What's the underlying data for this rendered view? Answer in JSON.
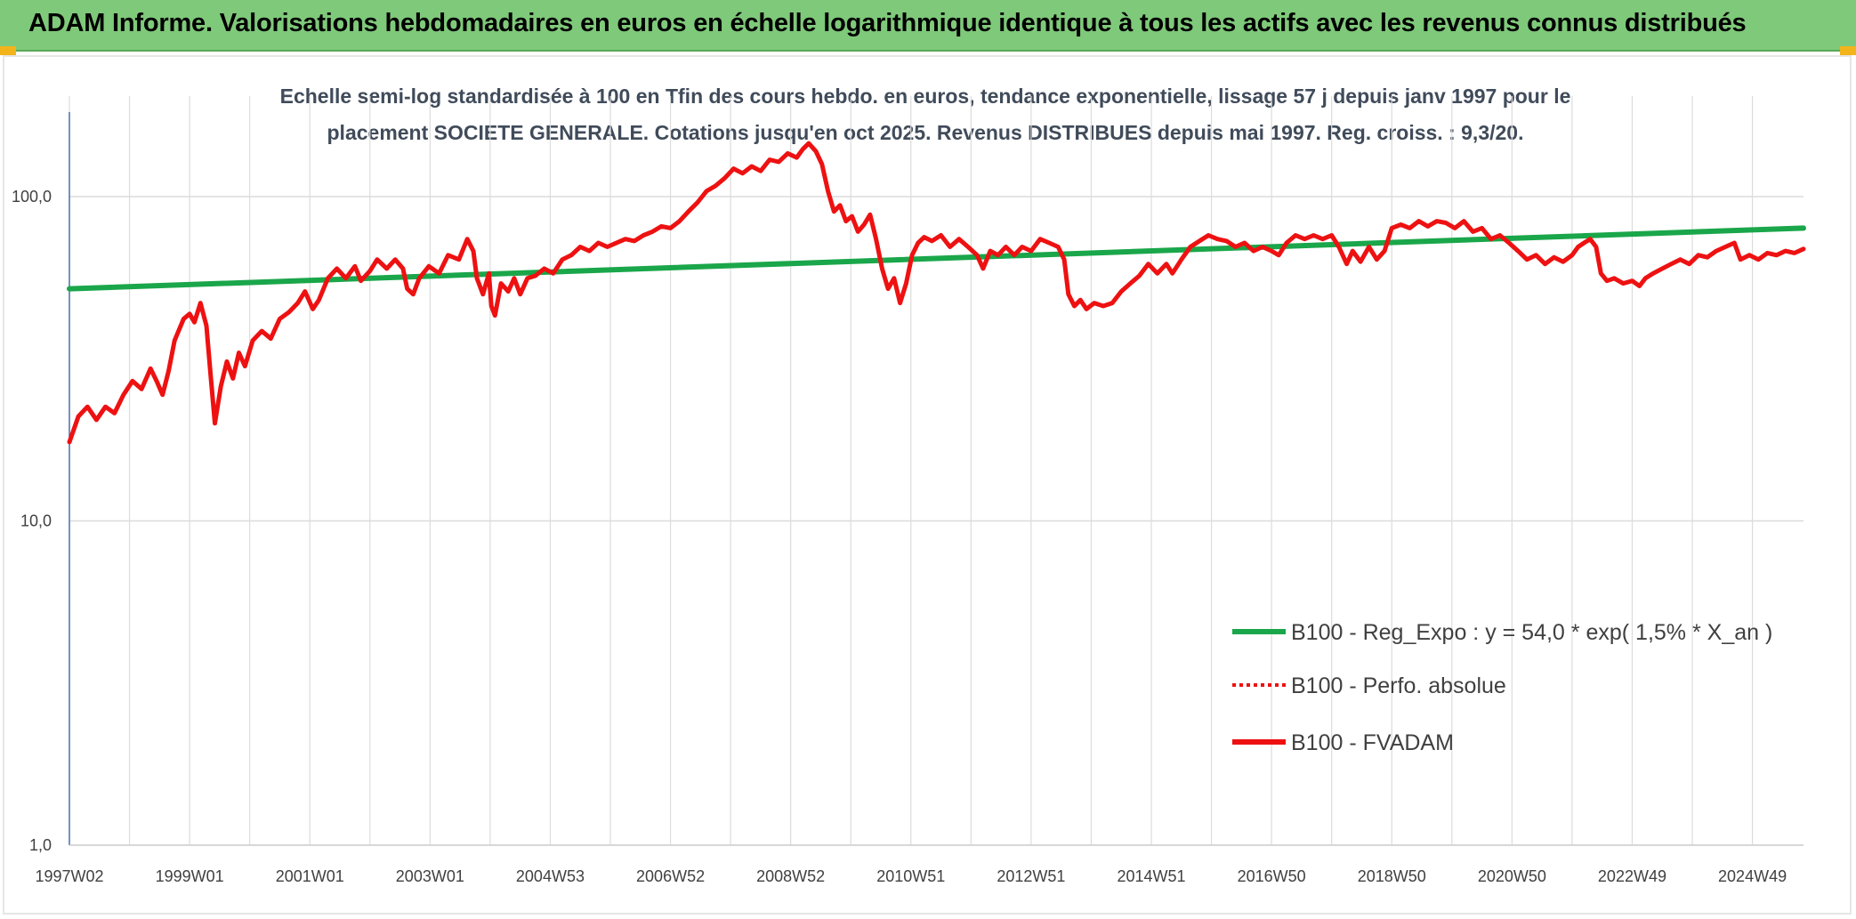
{
  "header": {
    "title": "ADAM Informe. Valorisations hebdomadaires en euros en échelle logarithmique identique à tous les actifs avec les revenus connus distribués"
  },
  "colors": {
    "banner": "#7fc97a",
    "corner": "#f3b41b",
    "trend": "#1aa64a",
    "series": "#ee1111",
    "grid": "#dcdcdc",
    "axis": "#4a6fb0"
  },
  "chart_data": {
    "type": "line",
    "title": "",
    "subtitle_lines": [
      "Echelle semi-log standardisée à 100 en Tfin des cours hebdo. en euros, tendance exponentielle, lissage 57 j depuis janv 1997 pour le",
      "placement SOCIETE GENERALE. Cotations jusqu'en oct 2025. Revenus DISTRIBUES depuis mai 1997. Reg. croiss. : 9,3/20."
    ],
    "y_scale": "log",
    "ylim": [
      1,
      180
    ],
    "y_ticks": [
      {
        "value": 1,
        "label": "1,0"
      },
      {
        "value": 10,
        "label": "10,0"
      },
      {
        "value": 100,
        "label": "100,0"
      }
    ],
    "xlim": [
      1997.0,
      2025.85
    ],
    "x_ticks": [
      {
        "x": 1997.0,
        "label": "1997W02"
      },
      {
        "x": 1999.0,
        "label": "1999W01"
      },
      {
        "x": 2001.0,
        "label": "2001W01"
      },
      {
        "x": 2003.0,
        "label": "2003W01"
      },
      {
        "x": 2005.0,
        "label": "2004W53"
      },
      {
        "x": 2007.0,
        "label": "2006W52"
      },
      {
        "x": 2009.0,
        "label": "2008W52"
      },
      {
        "x": 2011.0,
        "label": "2010W51"
      },
      {
        "x": 2013.0,
        "label": "2012W51"
      },
      {
        "x": 2015.0,
        "label": "2014W51"
      },
      {
        "x": 2017.0,
        "label": "2016W50"
      },
      {
        "x": 2019.0,
        "label": "2018W50"
      },
      {
        "x": 2021.0,
        "label": "2020W50"
      },
      {
        "x": 2023.0,
        "label": "2022W49"
      },
      {
        "x": 2025.0,
        "label": "2024W49"
      }
    ],
    "grid": true,
    "legend_position": "bottom-right",
    "series": [
      {
        "name": "B100 - Reg_Expo : y = 54,0 * exp( 1,5% *  X_an )",
        "style": "solid-green",
        "points": [
          [
            1997.0,
            52.0
          ],
          [
            2025.85,
            80.0
          ]
        ]
      },
      {
        "name": "B100 - Perfo. absolue",
        "style": "dotted-red",
        "points": []
      },
      {
        "name": "B100 - FVADAM",
        "style": "solid-red",
        "points": [
          [
            1997.0,
            17.5
          ],
          [
            1997.15,
            21.0
          ],
          [
            1997.3,
            22.5
          ],
          [
            1997.45,
            20.5
          ],
          [
            1997.6,
            22.5
          ],
          [
            1997.75,
            21.5
          ],
          [
            1997.9,
            24.5
          ],
          [
            1998.05,
            27.0
          ],
          [
            1998.2,
            25.5
          ],
          [
            1998.35,
            29.5
          ],
          [
            1998.45,
            27.0
          ],
          [
            1998.55,
            24.5
          ],
          [
            1998.65,
            29.0
          ],
          [
            1998.75,
            36.0
          ],
          [
            1998.9,
            42.0
          ],
          [
            1999.0,
            43.5
          ],
          [
            1999.08,
            41.0
          ],
          [
            1999.18,
            47.0
          ],
          [
            1999.28,
            40.0
          ],
          [
            1999.35,
            28.0
          ],
          [
            1999.42,
            20.0
          ],
          [
            1999.52,
            26.0
          ],
          [
            1999.62,
            31.0
          ],
          [
            1999.72,
            27.5
          ],
          [
            1999.82,
            33.0
          ],
          [
            1999.92,
            30.0
          ],
          [
            2000.05,
            36.0
          ],
          [
            2000.2,
            38.5
          ],
          [
            2000.35,
            36.5
          ],
          [
            2000.5,
            42.0
          ],
          [
            2000.65,
            44.0
          ],
          [
            2000.8,
            47.0
          ],
          [
            2000.92,
            51.0
          ],
          [
            2001.05,
            45.0
          ],
          [
            2001.15,
            48.0
          ],
          [
            2001.3,
            56.0
          ],
          [
            2001.45,
            60.0
          ],
          [
            2001.6,
            56.0
          ],
          [
            2001.75,
            61.0
          ],
          [
            2001.85,
            55.0
          ],
          [
            2002.0,
            59.0
          ],
          [
            2002.12,
            64.0
          ],
          [
            2002.28,
            60.0
          ],
          [
            2002.42,
            64.0
          ],
          [
            2002.55,
            60.0
          ],
          [
            2002.62,
            52.0
          ],
          [
            2002.72,
            50.0
          ],
          [
            2002.82,
            56.0
          ],
          [
            2002.98,
            61.0
          ],
          [
            2003.15,
            58.0
          ],
          [
            2003.3,
            66.0
          ],
          [
            2003.48,
            64.0
          ],
          [
            2003.62,
            74.0
          ],
          [
            2003.72,
            68.0
          ],
          [
            2003.78,
            56.0
          ],
          [
            2003.88,
            50.0
          ],
          [
            2003.98,
            58.0
          ],
          [
            2004.02,
            46.0
          ],
          [
            2004.08,
            43.0
          ],
          [
            2004.18,
            54.0
          ],
          [
            2004.3,
            51.0
          ],
          [
            2004.4,
            56.0
          ],
          [
            2004.5,
            50.0
          ],
          [
            2004.62,
            56.0
          ],
          [
            2004.75,
            57.0
          ],
          [
            2004.9,
            60.0
          ],
          [
            2005.05,
            58.0
          ],
          [
            2005.2,
            64.0
          ],
          [
            2005.35,
            66.0
          ],
          [
            2005.5,
            70.0
          ],
          [
            2005.65,
            68.0
          ],
          [
            2005.8,
            72.0
          ],
          [
            2005.95,
            70.0
          ],
          [
            2006.1,
            72.0
          ],
          [
            2006.25,
            74.0
          ],
          [
            2006.4,
            73.0
          ],
          [
            2006.55,
            76.0
          ],
          [
            2006.7,
            78.0
          ],
          [
            2006.85,
            81.0
          ],
          [
            2007.0,
            80.0
          ],
          [
            2007.15,
            84.0
          ],
          [
            2007.3,
            90.0
          ],
          [
            2007.45,
            96.0
          ],
          [
            2007.6,
            104.0
          ],
          [
            2007.75,
            108.0
          ],
          [
            2007.9,
            114.0
          ],
          [
            2008.05,
            122.0
          ],
          [
            2008.2,
            118.0
          ],
          [
            2008.35,
            124.0
          ],
          [
            2008.5,
            120.0
          ],
          [
            2008.65,
            130.0
          ],
          [
            2008.8,
            128.0
          ],
          [
            2008.95,
            136.0
          ],
          [
            2009.1,
            132.0
          ],
          [
            2009.2,
            140.0
          ],
          [
            2009.3,
            146.0
          ],
          [
            2009.42,
            138.0
          ],
          [
            2009.52,
            126.0
          ],
          [
            2009.62,
            104.0
          ],
          [
            2009.72,
            90.0
          ],
          [
            2009.82,
            94.0
          ],
          [
            2009.92,
            84.0
          ],
          [
            2010.02,
            87.0
          ],
          [
            2010.12,
            78.0
          ],
          [
            2010.22,
            82.0
          ],
          [
            2010.32,
            88.0
          ],
          [
            2010.42,
            74.0
          ],
          [
            2010.52,
            60.0
          ],
          [
            2010.62,
            52.0
          ],
          [
            2010.72,
            56.0
          ],
          [
            2010.82,
            47.0
          ],
          [
            2010.92,
            54.0
          ],
          [
            2011.02,
            66.0
          ],
          [
            2011.12,
            72.0
          ],
          [
            2011.22,
            75.0
          ],
          [
            2011.35,
            73.0
          ],
          [
            2011.5,
            76.0
          ],
          [
            2011.65,
            70.0
          ],
          [
            2011.8,
            74.0
          ],
          [
            2011.95,
            70.0
          ],
          [
            2012.1,
            66.0
          ],
          [
            2012.2,
            60.0
          ],
          [
            2012.32,
            68.0
          ],
          [
            2012.45,
            66.0
          ],
          [
            2012.58,
            70.0
          ],
          [
            2012.72,
            66.0
          ],
          [
            2012.85,
            70.0
          ],
          [
            2013.0,
            68.0
          ],
          [
            2013.15,
            74.0
          ],
          [
            2013.3,
            72.0
          ],
          [
            2013.45,
            70.0
          ],
          [
            2013.55,
            64.0
          ],
          [
            2013.62,
            50.0
          ],
          [
            2013.72,
            46.0
          ],
          [
            2013.82,
            48.0
          ],
          [
            2013.92,
            45.0
          ],
          [
            2014.05,
            47.0
          ],
          [
            2014.2,
            46.0
          ],
          [
            2014.35,
            47.0
          ],
          [
            2014.5,
            51.0
          ],
          [
            2014.65,
            54.0
          ],
          [
            2014.8,
            57.0
          ],
          [
            2014.95,
            62.0
          ],
          [
            2015.1,
            58.0
          ],
          [
            2015.25,
            62.0
          ],
          [
            2015.35,
            58.0
          ],
          [
            2015.5,
            64.0
          ],
          [
            2015.65,
            70.0
          ],
          [
            2015.8,
            73.0
          ],
          [
            2015.95,
            76.0
          ],
          [
            2016.1,
            74.0
          ],
          [
            2016.25,
            73.0
          ],
          [
            2016.4,
            70.0
          ],
          [
            2016.55,
            72.0
          ],
          [
            2016.7,
            68.0
          ],
          [
            2016.85,
            70.0
          ],
          [
            2017.0,
            68.0
          ],
          [
            2017.12,
            66.0
          ],
          [
            2017.25,
            72.0
          ],
          [
            2017.4,
            76.0
          ],
          [
            2017.55,
            74.0
          ],
          [
            2017.7,
            76.0
          ],
          [
            2017.85,
            74.0
          ],
          [
            2018.0,
            76.0
          ],
          [
            2018.12,
            70.0
          ],
          [
            2018.25,
            62.0
          ],
          [
            2018.35,
            68.0
          ],
          [
            2018.48,
            63.0
          ],
          [
            2018.62,
            70.0
          ],
          [
            2018.75,
            64.0
          ],
          [
            2018.88,
            68.0
          ],
          [
            2019.0,
            80.0
          ],
          [
            2019.15,
            82.0
          ],
          [
            2019.3,
            80.0
          ],
          [
            2019.45,
            84.0
          ],
          [
            2019.6,
            81.0
          ],
          [
            2019.75,
            84.0
          ],
          [
            2019.9,
            83.0
          ],
          [
            2020.05,
            80.0
          ],
          [
            2020.2,
            84.0
          ],
          [
            2020.35,
            78.0
          ],
          [
            2020.5,
            80.0
          ],
          [
            2020.65,
            74.0
          ],
          [
            2020.8,
            76.0
          ],
          [
            2020.95,
            72.0
          ],
          [
            2021.1,
            68.0
          ],
          [
            2021.25,
            64.0
          ],
          [
            2021.4,
            66.0
          ],
          [
            2021.55,
            62.0
          ],
          [
            2021.7,
            65.0
          ],
          [
            2021.85,
            63.0
          ],
          [
            2022.0,
            66.0
          ],
          [
            2022.1,
            70.0
          ],
          [
            2022.2,
            72.0
          ],
          [
            2022.3,
            74.0
          ],
          [
            2022.4,
            70.0
          ],
          [
            2022.48,
            58.0
          ],
          [
            2022.58,
            55.0
          ],
          [
            2022.7,
            56.0
          ],
          [
            2022.85,
            54.0
          ],
          [
            2023.0,
            55.0
          ],
          [
            2023.12,
            53.0
          ],
          [
            2023.22,
            56.0
          ],
          [
            2023.35,
            58.0
          ],
          [
            2023.5,
            60.0
          ],
          [
            2023.65,
            62.0
          ],
          [
            2023.8,
            64.0
          ],
          [
            2023.95,
            62.0
          ],
          [
            2024.1,
            66.0
          ],
          [
            2024.25,
            65.0
          ],
          [
            2024.4,
            68.0
          ],
          [
            2024.55,
            70.0
          ],
          [
            2024.7,
            72.0
          ],
          [
            2024.8,
            64.0
          ],
          [
            2024.95,
            66.0
          ],
          [
            2025.1,
            64.0
          ],
          [
            2025.25,
            67.0
          ],
          [
            2025.4,
            66.0
          ],
          [
            2025.55,
            68.0
          ],
          [
            2025.7,
            67.0
          ],
          [
            2025.85,
            69.0
          ]
        ]
      }
    ]
  }
}
